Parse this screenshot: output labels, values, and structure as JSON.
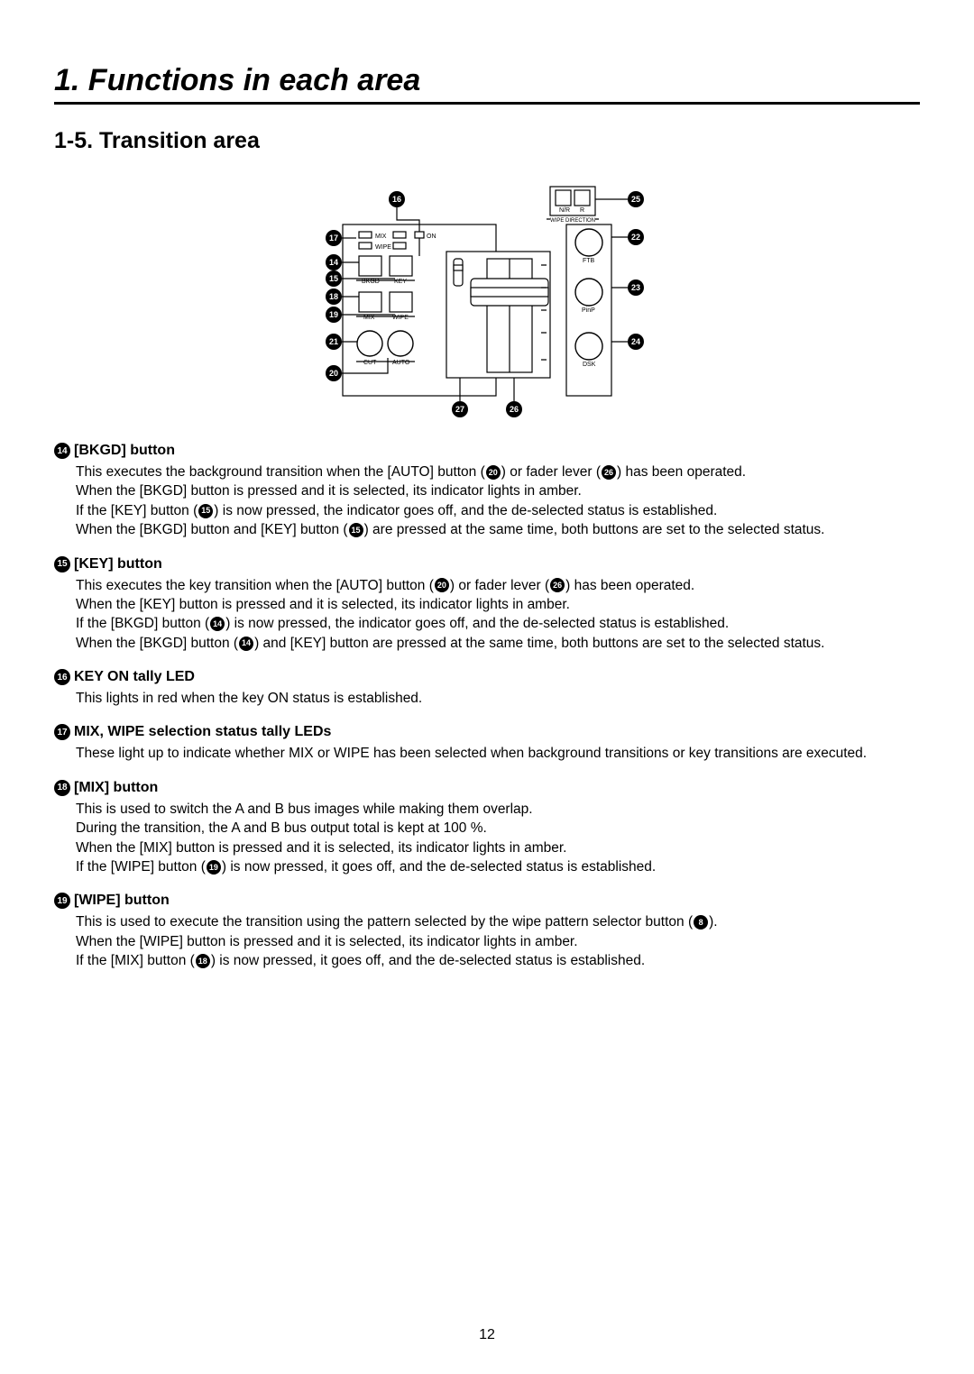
{
  "chapter": "1. Functions in each area",
  "section": "1-5. Transition area",
  "pageNumber": "12",
  "diagram": {
    "labels": {
      "nr": "N/R",
      "r": "R",
      "wipeDirection": "WIPE DIRECTION",
      "mixLed": "MIX",
      "wipeLed": "WIPE",
      "on": "ON",
      "bkgd": "BKGD",
      "key": "KEY",
      "mix": "MIX",
      "wipe": "WIPE",
      "cut": "CUT",
      "auto": "AUTO",
      "ftb": "FTB",
      "pinp": "PinP",
      "dsk": "DSK"
    },
    "callouts": {
      "c14": "14",
      "c15": "15",
      "c16": "16",
      "c17": "17",
      "c18": "18",
      "c19": "19",
      "c20": "20",
      "c21": "21",
      "c22": "22",
      "c23": "23",
      "c24": "24",
      "c25": "25",
      "c26": "26",
      "c27": "27"
    }
  },
  "items": [
    {
      "num": "14",
      "title": "[BKGD] button",
      "body": "This executes the background transition when the [AUTO] button ({20}) or fader lever ({26}) has been operated.\nWhen the [BKGD] button is pressed and it is selected, its indicator lights in amber.\nIf the [KEY] button ({15}) is now pressed, the indicator goes off, and the de-selected status is established.\nWhen the [BKGD] button and [KEY] button ({15}) are pressed at the same time, both buttons are set to the selected status."
    },
    {
      "num": "15",
      "title": "[KEY] button",
      "body": "This executes the key transition when the [AUTO] button ({20}) or fader lever ({26}) has been operated.\nWhen the [KEY] button is pressed and it is selected, its indicator lights in amber.\nIf the [BKGD] button ({14}) is now pressed, the indicator goes off, and the de-selected status is established.\nWhen the [BKGD] button ({14}) and [KEY] button are pressed at the same time, both buttons are set to the selected status."
    },
    {
      "num": "16",
      "title": "KEY ON tally LED",
      "body": "This lights in red when the key ON status is established."
    },
    {
      "num": "17",
      "title": "MIX, WIPE selection status tally LEDs",
      "body": "These light up to indicate whether MIX or WIPE has been selected when background transitions or key transitions are executed."
    },
    {
      "num": "18",
      "title": "[MIX] button",
      "body": "This is used to switch the A and B bus images while making them overlap.\nDuring the transition, the A and B bus output total is kept at 100 %.\nWhen the [MIX] button is pressed and it is selected, its indicator lights in amber.\nIf the [WIPE] button ({19}) is now pressed, it goes off, and the de-selected status is established."
    },
    {
      "num": "19",
      "title": "[WIPE] button",
      "body": "This is used to execute the transition using the pattern selected by the wipe pattern selector button ({8}).\nWhen the [WIPE] button is pressed and it is selected, its indicator lights in amber.\nIf the [MIX] button ({18}) is now pressed, it goes off, and the de-selected status is established."
    }
  ]
}
